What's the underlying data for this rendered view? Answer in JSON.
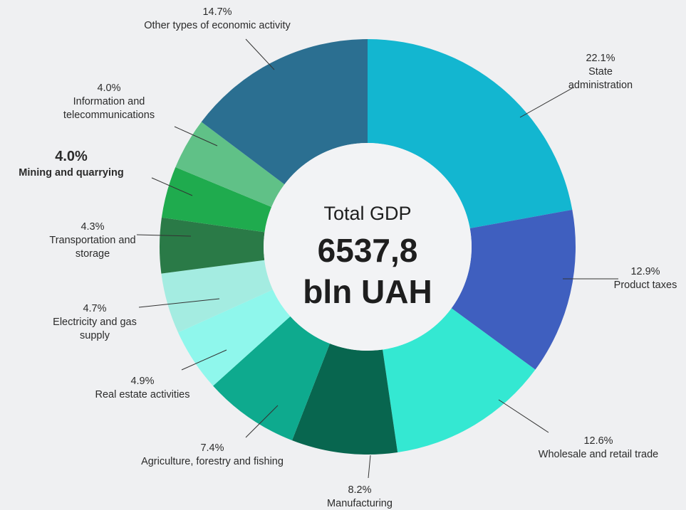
{
  "chart_data": {
    "type": "donut",
    "categories": [
      "State administration",
      "Product taxes",
      "Wholesale and retail trade",
      "Manufacturing",
      "Agriculture, forestry and fishing",
      "Real estate activities",
      "Electricity and gas supply",
      "Transportation and storage",
      "Mining and quarrying",
      "Information and telecommunications",
      "Other types of economic activity"
    ],
    "values": [
      22.1,
      12.9,
      12.6,
      8.2,
      7.4,
      4.9,
      4.7,
      4.3,
      4.0,
      4.0,
      14.7
    ],
    "value_labels": [
      "22.1%",
      "12.9%",
      "12.6%",
      "8.2%",
      "7.4%",
      "4.9%",
      "4.7%",
      "4.3%",
      "4.0%",
      "4.0%",
      "14.7%"
    ],
    "colors": [
      "#13b6d0",
      "#3f5fbf",
      "#34e8d2",
      "#08664f",
      "#0eaa8e",
      "#8ff7ec",
      "#a4ece1",
      "#2a7a47",
      "#1fab4e",
      "#60c187",
      "#2b6f91"
    ],
    "center_label": "Total GDP",
    "center_value": "6537,8",
    "center_unit": "bln UAH"
  }
}
